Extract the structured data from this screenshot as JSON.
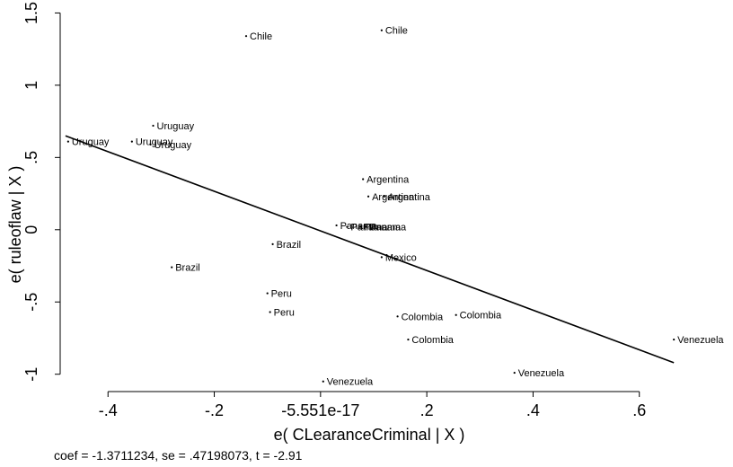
{
  "chart_data": {
    "type": "scatter",
    "title": "",
    "xlabel": "e( CLearanceCriminal | X )",
    "ylabel": "e( ruleoflaw | X )",
    "xlim": [
      -0.49,
      0.685
    ],
    "ylim": [
      -1.12,
      1.54
    ],
    "x_ticks": [
      {
        "value": -0.4,
        "label": "-.4"
      },
      {
        "value": -0.2,
        "label": "-.2"
      },
      {
        "value": 0.0,
        "label": "-5.551e-17"
      },
      {
        "value": 0.2,
        "label": ".2"
      },
      {
        "value": 0.4,
        "label": ".4"
      },
      {
        "value": 0.6,
        "label": ".6"
      }
    ],
    "y_ticks": [
      {
        "value": -1.0,
        "label": "-1"
      },
      {
        "value": -0.5,
        "label": "-.5"
      },
      {
        "value": 0.0,
        "label": "0"
      },
      {
        "value": 0.5,
        "label": ".5"
      },
      {
        "value": 1.0,
        "label": "1"
      },
      {
        "value": 1.5,
        "label": "1.5"
      }
    ],
    "points": [
      {
        "label": "Chile",
        "x": -0.14,
        "y": 1.34
      },
      {
        "label": "Chile",
        "x": 0.115,
        "y": 1.38
      },
      {
        "label": "Uruguay",
        "x": -0.315,
        "y": 0.72
      },
      {
        "label": "Uruguay",
        "x": -0.475,
        "y": 0.61
      },
      {
        "label": "Uruguay",
        "x": -0.355,
        "y": 0.61
      },
      {
        "label": "Uruguay",
        "x": -0.32,
        "y": 0.59
      },
      {
        "label": "Argentina",
        "x": 0.08,
        "y": 0.35
      },
      {
        "label": "Argentina",
        "x": 0.09,
        "y": 0.23
      },
      {
        "label": "Argentina",
        "x": 0.12,
        "y": 0.23
      },
      {
        "label": "Panama",
        "x": 0.03,
        "y": 0.03
      },
      {
        "label": "Panama",
        "x": 0.05,
        "y": 0.02
      },
      {
        "label": "Panama",
        "x": 0.075,
        "y": 0.02
      },
      {
        "label": "Panama",
        "x": 0.085,
        "y": 0.02
      },
      {
        "label": "Brazil",
        "x": -0.09,
        "y": -0.1
      },
      {
        "label": "Brazil",
        "x": -0.28,
        "y": -0.26
      },
      {
        "label": "Mexico",
        "x": 0.115,
        "y": -0.19
      },
      {
        "label": "Peru",
        "x": -0.1,
        "y": -0.44
      },
      {
        "label": "Peru",
        "x": -0.095,
        "y": -0.57
      },
      {
        "label": "Colombia",
        "x": 0.145,
        "y": -0.6
      },
      {
        "label": "Colombia",
        "x": 0.255,
        "y": -0.59
      },
      {
        "label": "Colombia",
        "x": 0.165,
        "y": -0.76
      },
      {
        "label": "Venezuela",
        "x": 0.665,
        "y": -0.76
      },
      {
        "label": "Venezuela",
        "x": 0.365,
        "y": -0.99
      },
      {
        "label": "Venezuela",
        "x": 0.005,
        "y": -1.05
      }
    ],
    "fit_line": {
      "x": [
        -0.48,
        0.665
      ],
      "y": [
        0.65,
        -0.92
      ]
    },
    "grid": false,
    "legend": "none"
  },
  "note": "coef = -1.3711234, se = .47198073, t = -2.91"
}
